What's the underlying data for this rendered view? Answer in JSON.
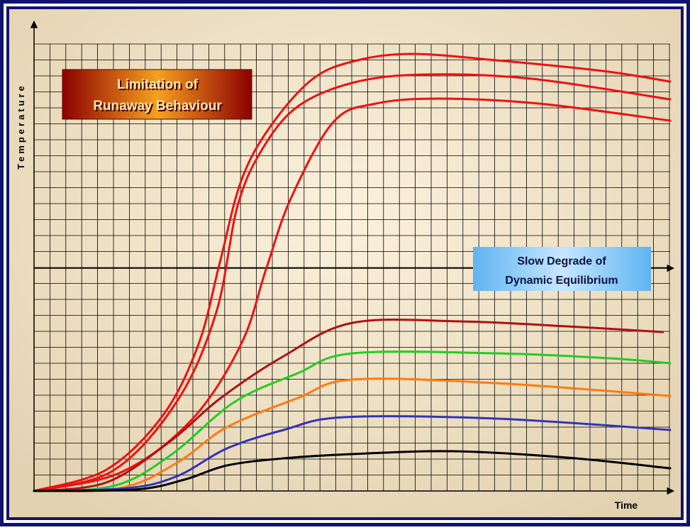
{
  "axis_labels": {
    "y": "Temperature",
    "x": "Time"
  },
  "callouts": {
    "runaway": {
      "lines": [
        "Limitation of",
        "Runaway Behaviour"
      ]
    },
    "equilibrium": {
      "lines": [
        "Slow Degrade of",
        "Dynamic Equilibrium"
      ]
    }
  }
}
